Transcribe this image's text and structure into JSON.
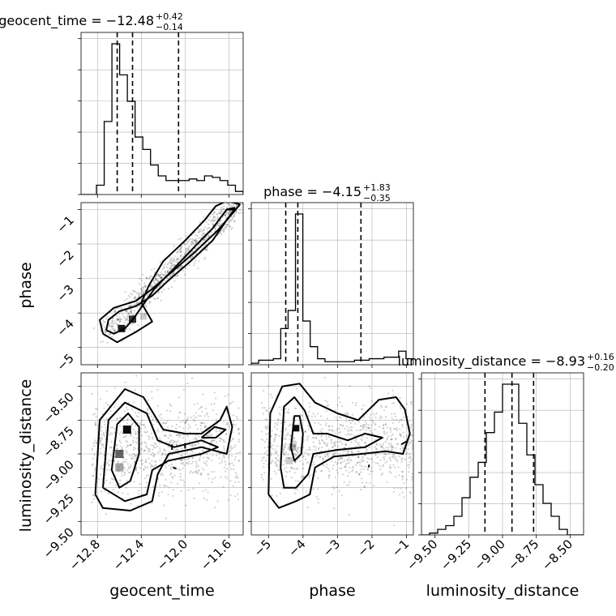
{
  "chart_data": {
    "type": "corner",
    "parameters": [
      "geocent_time",
      "phase",
      "luminosity_distance"
    ],
    "titles": [
      {
        "text": "geocent_time = −12.48",
        "plus": "+0.42",
        "minus": "−0.14"
      },
      {
        "text": "phase = −4.15",
        "plus": "+1.83",
        "minus": "−0.35"
      },
      {
        "text": "luminosity_distance = −8.93",
        "plus": "+0.16",
        "minus": "−0.20"
      }
    ],
    "ranges": [
      [
        -12.95,
        -11.47
      ],
      [
        -5.5,
        -0.8
      ],
      [
        -9.6,
        -8.4
      ]
    ],
    "ticks": [
      {
        "values": [
          -12.8,
          -12.4,
          -12.0,
          -11.6
        ],
        "labels": [
          "−12.8",
          "−12.4",
          "−12.0",
          "−11.6"
        ]
      },
      {
        "values": [
          -5,
          -4,
          -3,
          -2,
          -1
        ],
        "labels": [
          "−5",
          "−4",
          "−3",
          "−2",
          "−1"
        ]
      },
      {
        "values": [
          -9.5,
          -9.25,
          -9.0,
          -8.75,
          -8.5
        ],
        "labels": [
          "−9.50",
          "−9.25",
          "−9.00",
          "−8.75",
          "−8.50"
        ]
      }
    ],
    "quantiles": [
      [
        -12.62,
        -12.48,
        -12.06
      ],
      [
        -4.5,
        -4.15,
        -2.32
      ],
      [
        -9.13,
        -8.93,
        -8.77
      ]
    ],
    "histograms": [
      {
        "edges_range": [
          -12.95,
          -11.47
        ],
        "counts": [
          0,
          0,
          6,
          47,
          97,
          77,
          60,
          37,
          29,
          19,
          12,
          9,
          9,
          9,
          10,
          9,
          12,
          11,
          9,
          6,
          2
        ]
      },
      {
        "edges_range": [
          -5.5,
          -0.8
        ],
        "counts": [
          1,
          3,
          3,
          4,
          24,
          36,
          100,
          29,
          12,
          4,
          2,
          2,
          2,
          2,
          3,
          3,
          4,
          4,
          5,
          5,
          9,
          4
        ]
      },
      {
        "edges_range": [
          -9.6,
          -8.4
        ],
        "counts": [
          0,
          1,
          3,
          5,
          10,
          20,
          31,
          39,
          55,
          66,
          81,
          81,
          60,
          43,
          27,
          17,
          10,
          3,
          0,
          0
        ]
      }
    ],
    "grid": true,
    "legend": "none"
  }
}
